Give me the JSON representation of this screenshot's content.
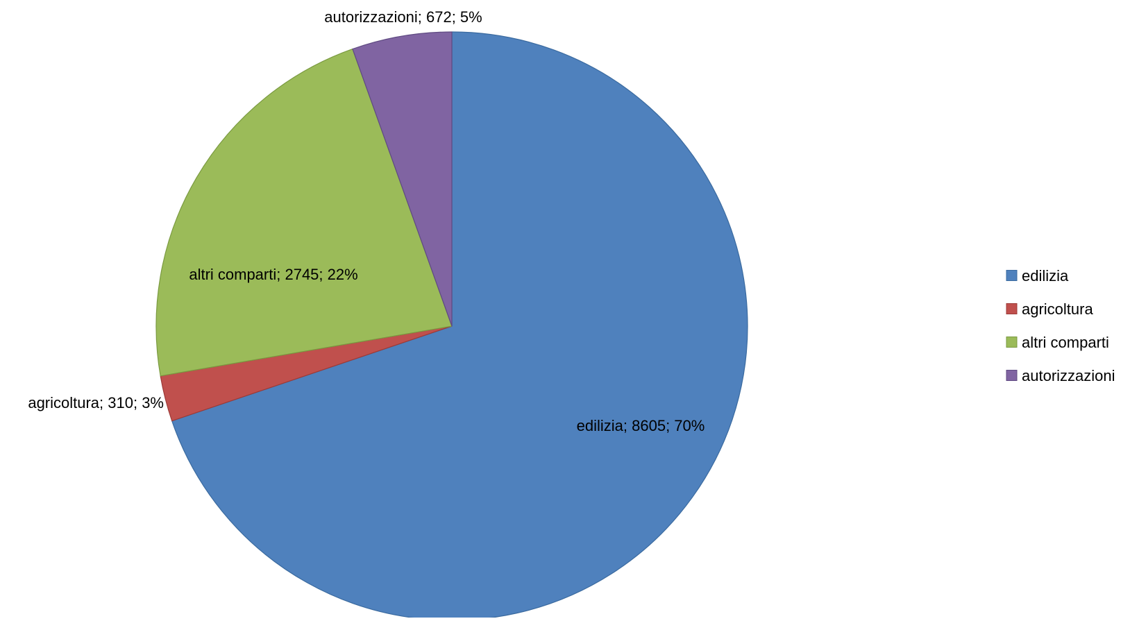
{
  "chart_data": {
    "type": "pie",
    "title": "",
    "categories": [
      "edilizia",
      "agricoltura",
      "altri comparti",
      "autorizzazioni"
    ],
    "values": [
      8605,
      310,
      2745,
      672
    ],
    "percentages": [
      "70%",
      "3%",
      "22%",
      "5%"
    ],
    "data_labels": [
      "edilizia; 8605; 70%",
      "agricoltura; 310; 3%",
      "altri comparti; 2745; 22%",
      "autorizzazioni; 672; 5%"
    ],
    "colors": [
      "#4f81bd",
      "#c0504d",
      "#9bbb59",
      "#8064a2"
    ],
    "start_angle": "12 o'clock",
    "direction": "clockwise",
    "legend": {
      "position": "right",
      "entries": [
        "edilizia",
        "agricoltura",
        "altri comparti",
        "autorizzazioni"
      ]
    }
  }
}
